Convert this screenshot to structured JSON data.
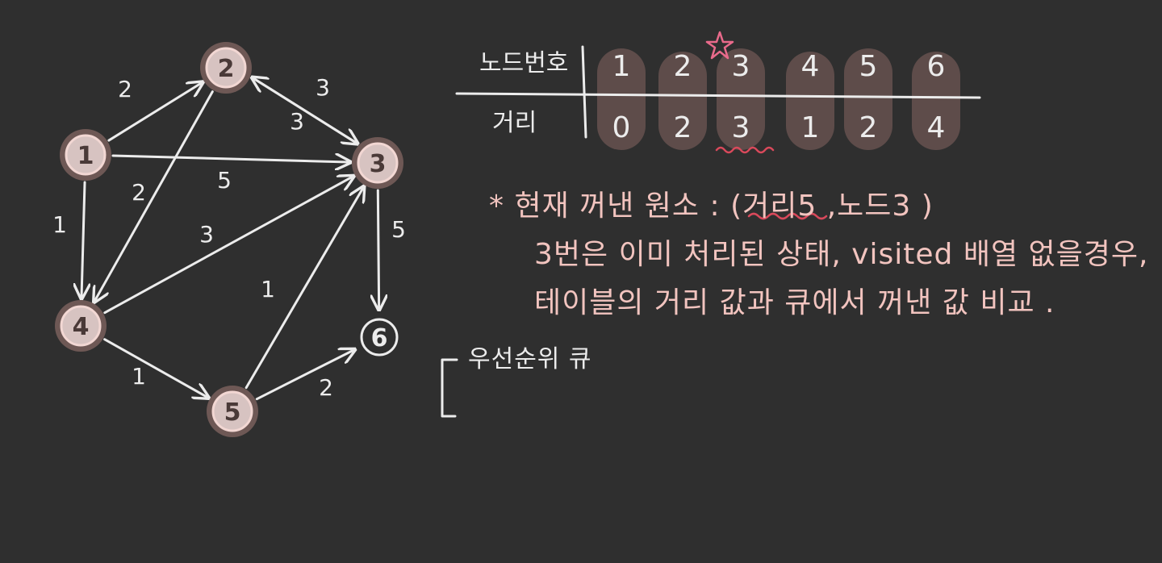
{
  "colors": {
    "background": "#2f2f2f",
    "stroke": "#ececec",
    "node_fill": "#6e5855",
    "node_fill_light": "#d7c3c1",
    "node_stroke": "#f2d7d3",
    "highlight_column": "#5e4c4a",
    "note_pink": "#f2c4bf",
    "star_pink": "#e96a8b",
    "squiggle_red": "#d9495b"
  },
  "graph": {
    "nodes": [
      {
        "id": "1",
        "label": "1",
        "visited": true
      },
      {
        "id": "2",
        "label": "2",
        "visited": true
      },
      {
        "id": "3",
        "label": "3",
        "visited": true
      },
      {
        "id": "4",
        "label": "4",
        "visited": true
      },
      {
        "id": "5",
        "label": "5",
        "visited": true
      },
      {
        "id": "6",
        "label": "6",
        "visited": false
      }
    ],
    "edges": [
      {
        "from": "1",
        "to": "2",
        "weight": "2"
      },
      {
        "from": "1",
        "to": "3",
        "weight": "5"
      },
      {
        "from": "1",
        "to": "4",
        "weight": "1"
      },
      {
        "from": "2",
        "to": "3",
        "weight": "3"
      },
      {
        "from": "3",
        "to": "2",
        "weight": "3"
      },
      {
        "from": "2",
        "to": "4",
        "weight": "2"
      },
      {
        "from": "3",
        "to": "6",
        "weight": "5"
      },
      {
        "from": "4",
        "to": "3",
        "weight": "3"
      },
      {
        "from": "4",
        "to": "5",
        "weight": "1"
      },
      {
        "from": "5",
        "to": "3",
        "weight": "1"
      },
      {
        "from": "5",
        "to": "6",
        "weight": "2"
      }
    ]
  },
  "table": {
    "row_header_node": "노드번호",
    "row_header_distance": "거리",
    "nodes": [
      "1",
      "2",
      "3",
      "4",
      "5",
      "6"
    ],
    "distances": [
      "0",
      "2",
      "3",
      "1",
      "2",
      "4"
    ]
  },
  "notes": {
    "line1": "* 현재 꺼낸 원소 : (거리5 ,노드3 )",
    "line2": "3번은 이미 처리된 상태, visited 배열 없을경우,",
    "line3": "테이블의 거리 값과 큐에서 꺼낸 값 비교 .",
    "queue_label": "우선순위 큐"
  }
}
